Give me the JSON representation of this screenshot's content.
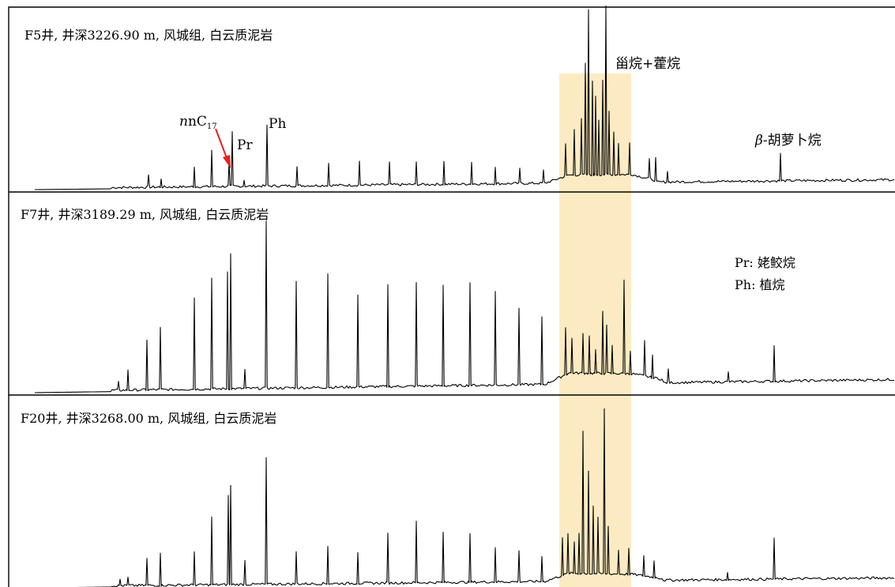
{
  "chart_data": [
    {
      "type": "line",
      "panel": "F5",
      "title": "F5井, 井深3226.90 m, 风城组, 白云质泥岩",
      "xlabel": "",
      "ylabel": "",
      "grid": false,
      "highlight_band_color": "#fcebc2",
      "annotations": {
        "nc17": "nC",
        "nc17_sub": "17",
        "pr": "Pr",
        "ph": "Ph",
        "steranes_hopanes": "甾烷+藿烷",
        "carotane_prefix": "β",
        "carotane_suffix": "-胡萝卜烷"
      },
      "arrow_color": "#e8201e",
      "peaks": [
        {
          "x": 188,
          "h": 14
        },
        {
          "x": 204,
          "h": 11
        },
        {
          "x": 246,
          "h": 26
        },
        {
          "x": 268,
          "h": 46
        },
        {
          "x": 290,
          "h": 30
        },
        {
          "x": 294,
          "h": 68
        },
        {
          "x": 309,
          "h": 8
        },
        {
          "x": 338,
          "h": 76
        },
        {
          "x": 376,
          "h": 24
        },
        {
          "x": 416,
          "h": 28
        },
        {
          "x": 455,
          "h": 30
        },
        {
          "x": 493,
          "h": 28
        },
        {
          "x": 527,
          "h": 28
        },
        {
          "x": 562,
          "h": 30
        },
        {
          "x": 597,
          "h": 28
        },
        {
          "x": 627,
          "h": 22
        },
        {
          "x": 658,
          "h": 18
        },
        {
          "x": 688,
          "h": 16
        },
        {
          "x": 716,
          "h": 40
        },
        {
          "x": 727,
          "h": 58
        },
        {
          "x": 736,
          "h": 70
        },
        {
          "x": 741,
          "h": 140
        },
        {
          "x": 745,
          "h": 208
        },
        {
          "x": 750,
          "h": 120
        },
        {
          "x": 754,
          "h": 100
        },
        {
          "x": 758,
          "h": 70
        },
        {
          "x": 763,
          "h": 120
        },
        {
          "x": 767,
          "h": 212
        },
        {
          "x": 771,
          "h": 80
        },
        {
          "x": 777,
          "h": 54
        },
        {
          "x": 783,
          "h": 40
        },
        {
          "x": 797,
          "h": 40
        },
        {
          "x": 822,
          "h": 24
        },
        {
          "x": 830,
          "h": 30
        },
        {
          "x": 845,
          "h": 14
        },
        {
          "x": 988,
          "h": 35
        }
      ]
    },
    {
      "type": "line",
      "panel": "F7",
      "title": "F7井, 井深3189.29 m, 风城组, 白云质泥岩",
      "xlabel": "",
      "ylabel": "",
      "grid": false,
      "highlight_band_color": "#fcebc2",
      "legend": {
        "line1": "Pr: 姥鲛烷",
        "line2": "Ph: 植烷"
      },
      "peaks": [
        {
          "x": 150,
          "h": 10
        },
        {
          "x": 162,
          "h": 26
        },
        {
          "x": 186,
          "h": 64
        },
        {
          "x": 203,
          "h": 78
        },
        {
          "x": 246,
          "h": 116
        },
        {
          "x": 268,
          "h": 140
        },
        {
          "x": 288,
          "h": 148
        },
        {
          "x": 292,
          "h": 172
        },
        {
          "x": 310,
          "h": 24
        },
        {
          "x": 337,
          "h": 210
        },
        {
          "x": 375,
          "h": 134
        },
        {
          "x": 415,
          "h": 144
        },
        {
          "x": 453,
          "h": 116
        },
        {
          "x": 491,
          "h": 130
        },
        {
          "x": 527,
          "h": 130
        },
        {
          "x": 561,
          "h": 128
        },
        {
          "x": 595,
          "h": 130
        },
        {
          "x": 627,
          "h": 118
        },
        {
          "x": 657,
          "h": 96
        },
        {
          "x": 686,
          "h": 86
        },
        {
          "x": 716,
          "h": 60
        },
        {
          "x": 724,
          "h": 44
        },
        {
          "x": 738,
          "h": 50
        },
        {
          "x": 746,
          "h": 48
        },
        {
          "x": 754,
          "h": 30
        },
        {
          "x": 763,
          "h": 80
        },
        {
          "x": 768,
          "h": 60
        },
        {
          "x": 775,
          "h": 36
        },
        {
          "x": 790,
          "h": 118
        },
        {
          "x": 798,
          "h": 30
        },
        {
          "x": 816,
          "h": 44
        },
        {
          "x": 826,
          "h": 30
        },
        {
          "x": 846,
          "h": 16
        },
        {
          "x": 922,
          "h": 12
        },
        {
          "x": 980,
          "h": 46
        }
      ]
    },
    {
      "type": "line",
      "panel": "F20",
      "title": "F20井, 井深3268.00 m, 风城组, 白云质泥岩",
      "xlabel": "",
      "ylabel": "",
      "grid": false,
      "highlight_band_color": "#fcebc2",
      "peaks": [
        {
          "x": 152,
          "h": 8
        },
        {
          "x": 162,
          "h": 10
        },
        {
          "x": 186,
          "h": 34
        },
        {
          "x": 203,
          "h": 42
        },
        {
          "x": 246,
          "h": 42
        },
        {
          "x": 268,
          "h": 86
        },
        {
          "x": 289,
          "h": 112
        },
        {
          "x": 292,
          "h": 126
        },
        {
          "x": 310,
          "h": 30
        },
        {
          "x": 337,
          "h": 160
        },
        {
          "x": 375,
          "h": 40
        },
        {
          "x": 415,
          "h": 48
        },
        {
          "x": 453,
          "h": 40
        },
        {
          "x": 491,
          "h": 62
        },
        {
          "x": 527,
          "h": 78
        },
        {
          "x": 561,
          "h": 64
        },
        {
          "x": 595,
          "h": 62
        },
        {
          "x": 627,
          "h": 44
        },
        {
          "x": 657,
          "h": 38
        },
        {
          "x": 686,
          "h": 32
        },
        {
          "x": 712,
          "h": 48
        },
        {
          "x": 719,
          "h": 50
        },
        {
          "x": 727,
          "h": 40
        },
        {
          "x": 733,
          "h": 52
        },
        {
          "x": 738,
          "h": 180
        },
        {
          "x": 745,
          "h": 130
        },
        {
          "x": 751,
          "h": 86
        },
        {
          "x": 757,
          "h": 70
        },
        {
          "x": 765,
          "h": 208
        },
        {
          "x": 770,
          "h": 60
        },
        {
          "x": 783,
          "h": 30
        },
        {
          "x": 796,
          "h": 34
        },
        {
          "x": 815,
          "h": 26
        },
        {
          "x": 828,
          "h": 22
        },
        {
          "x": 921,
          "h": 10
        },
        {
          "x": 980,
          "h": 52
        }
      ]
    }
  ]
}
